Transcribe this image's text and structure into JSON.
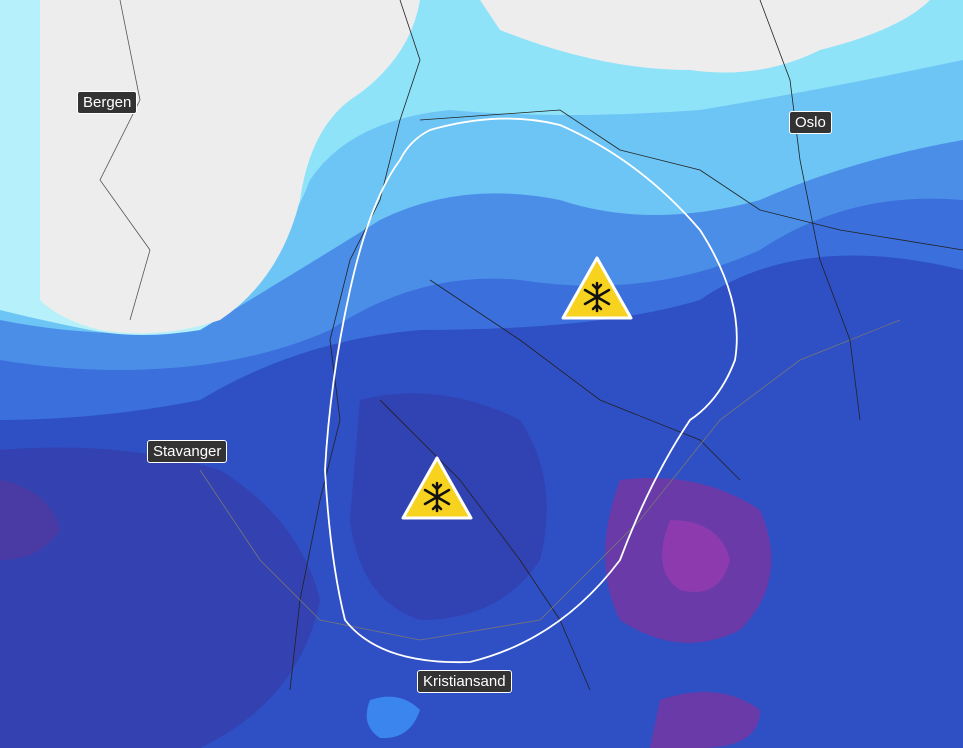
{
  "cities": [
    {
      "name": "Bergen"
    },
    {
      "name": "Oslo"
    },
    {
      "name": "Stavanger"
    },
    {
      "name": "Kristiansand"
    }
  ],
  "warnings": [
    {
      "type": "snow",
      "icon": "snowflake-warning-icon",
      "color": "#f7d320"
    },
    {
      "type": "snow",
      "icon": "snowflake-warning-icon",
      "color": "#f7d320"
    }
  ],
  "colors": {
    "land": "#ececec",
    "area_outline": "#ffffff"
  }
}
